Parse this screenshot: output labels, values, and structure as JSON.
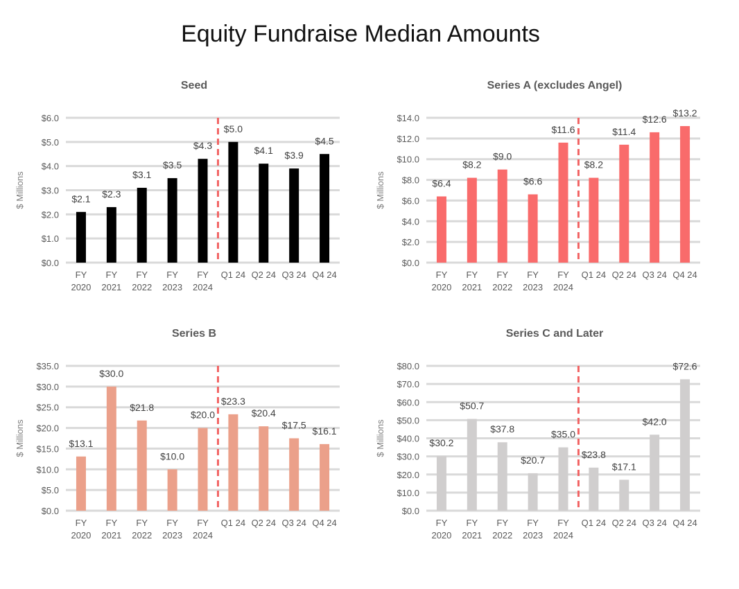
{
  "title": "Equity Fundraise Median Amounts",
  "chart_data": [
    {
      "type": "bar",
      "title": "Seed",
      "ylabel": "$ Millions",
      "categories": [
        [
          "FY",
          "2020"
        ],
        [
          "FY",
          "2021"
        ],
        [
          "FY",
          "2022"
        ],
        [
          "FY",
          "2023"
        ],
        [
          "FY",
          "2024"
        ],
        [
          "Q1 24"
        ],
        [
          "Q2 24"
        ],
        [
          "Q3 24"
        ],
        [
          "Q4 24"
        ]
      ],
      "values": [
        2.1,
        2.3,
        3.1,
        3.5,
        4.3,
        5.0,
        4.1,
        3.9,
        4.5
      ],
      "labels": [
        "$2.1",
        "$2.3",
        "$3.1",
        "$3.5",
        "$4.3",
        "$5.0",
        "$4.1",
        "$3.9",
        "$4.5"
      ],
      "ylim": [
        0,
        6
      ],
      "yticks": [
        "$0.0",
        "$1.0",
        "$2.0",
        "$3.0",
        "$4.0",
        "$5.0",
        "$6.0"
      ],
      "color": "#000000",
      "grid": true,
      "divider_after_index": 4,
      "divider_color": "#f26363"
    },
    {
      "type": "bar",
      "title": "Series A (excludes Angel)",
      "ylabel": "$ Millions",
      "categories": [
        [
          "FY",
          "2020"
        ],
        [
          "FY",
          "2021"
        ],
        [
          "FY",
          "2022"
        ],
        [
          "FY",
          "2023"
        ],
        [
          "FY",
          "2024"
        ],
        [
          "Q1 24"
        ],
        [
          "Q2 24"
        ],
        [
          "Q3 24"
        ],
        [
          "Q4 24"
        ]
      ],
      "values": [
        6.4,
        8.2,
        9.0,
        6.6,
        11.6,
        8.2,
        11.4,
        12.6,
        13.2
      ],
      "labels": [
        "$6.4",
        "$8.2",
        "$9.0",
        "$6.6",
        "$11.6",
        "$8.2",
        "$11.4",
        "$12.6",
        "$13.2"
      ],
      "ylim": [
        0,
        14
      ],
      "yticks": [
        "$0.0",
        "$2.0",
        "$4.0",
        "$6.0",
        "$8.0",
        "$10.0",
        "$12.0",
        "$14.0"
      ],
      "color": "#f96b6b",
      "grid": true,
      "divider_after_index": 4,
      "divider_color": "#f26363"
    },
    {
      "type": "bar",
      "title": "Series B",
      "ylabel": "$ Millions",
      "categories": [
        [
          "FY",
          "2020"
        ],
        [
          "FY",
          "2021"
        ],
        [
          "FY",
          "2022"
        ],
        [
          "FY",
          "2023"
        ],
        [
          "FY",
          "2024"
        ],
        [
          "Q1 24"
        ],
        [
          "Q2 24"
        ],
        [
          "Q3 24"
        ],
        [
          "Q4 24"
        ]
      ],
      "values": [
        13.1,
        30.0,
        21.8,
        10.0,
        20.0,
        23.3,
        20.4,
        17.5,
        16.1
      ],
      "labels": [
        "$13.1",
        "$30.0",
        "$21.8",
        "$10.0",
        "$20.0",
        "$23.3",
        "$20.4",
        "$17.5",
        "$16.1"
      ],
      "ylim": [
        0,
        35
      ],
      "yticks": [
        "$0.0",
        "$5.0",
        "$10.0",
        "$15.0",
        "$20.0",
        "$25.0",
        "$30.0",
        "$35.0"
      ],
      "color": "#eba08a",
      "grid": true,
      "divider_after_index": 4,
      "divider_color": "#f26363"
    },
    {
      "type": "bar",
      "title": "Series C and Later",
      "ylabel": "$ Millions",
      "categories": [
        [
          "FY",
          "2020"
        ],
        [
          "FY",
          "2021"
        ],
        [
          "FY",
          "2022"
        ],
        [
          "FY",
          "2023"
        ],
        [
          "FY",
          "2024"
        ],
        [
          "Q1 24"
        ],
        [
          "Q2 24"
        ],
        [
          "Q3 24"
        ],
        [
          "Q4 24"
        ]
      ],
      "values": [
        30.2,
        50.7,
        37.8,
        20.7,
        35.0,
        23.8,
        17.1,
        42.0,
        72.6
      ],
      "labels": [
        "$30.2",
        "$50.7",
        "$37.8",
        "$20.7",
        "$35.0",
        "$23.8",
        "$17.1",
        "$42.0",
        "$72.6"
      ],
      "ylim": [
        0,
        80
      ],
      "yticks": [
        "$0.0",
        "$10.0",
        "$20.0",
        "$30.0",
        "$40.0",
        "$50.0",
        "$60.0",
        "$70.0",
        "$80.0"
      ],
      "color": "#d0cece",
      "grid": true,
      "divider_after_index": 4,
      "divider_color": "#f26363"
    }
  ]
}
